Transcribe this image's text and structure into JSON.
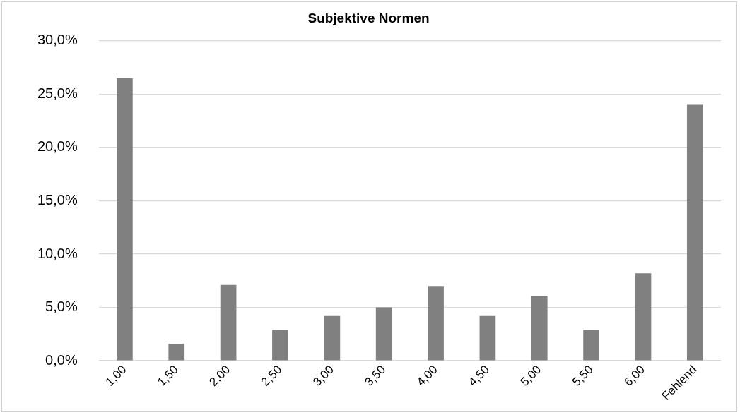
{
  "chart_data": {
    "type": "bar",
    "title": "Subjektive Normen",
    "categories": [
      "1,00",
      "1,50",
      "2,00",
      "2,50",
      "3,00",
      "3,50",
      "4,00",
      "4,50",
      "5,00",
      "5,50",
      "6,00",
      "Fehlend"
    ],
    "values": [
      26.5,
      1.6,
      7.1,
      2.9,
      4.2,
      5.0,
      7.0,
      4.2,
      6.1,
      2.9,
      8.2,
      24.0
    ],
    "color": "#808080",
    "ylim": [
      0,
      30
    ],
    "yticks": [
      {
        "value": 0,
        "label": "0,0%"
      },
      {
        "value": 5,
        "label": "5,0%"
      },
      {
        "value": 10,
        "label": "10,0%"
      },
      {
        "value": 15,
        "label": "15,0%"
      },
      {
        "value": 20,
        "label": "20,0%"
      },
      {
        "value": 25,
        "label": "25,0%"
      },
      {
        "value": 30,
        "label": "30,0%"
      }
    ],
    "grid": "y"
  }
}
